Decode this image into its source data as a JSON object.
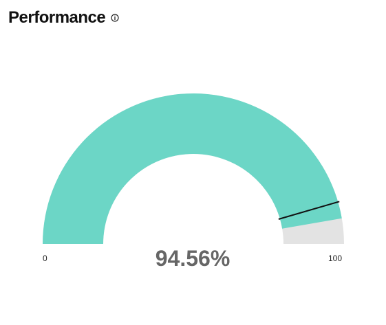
{
  "widget": {
    "title": "Performance",
    "info_icon": "info-circle-icon"
  },
  "gauge": {
    "value": 94.56,
    "value_label": "94.56%",
    "min_label": "0",
    "max_label": "100",
    "target": 91,
    "colors": {
      "fill": "#6cd6c6",
      "track": "#e3e3e3",
      "target_marker": "#111111",
      "value_text": "#666666"
    }
  }
}
